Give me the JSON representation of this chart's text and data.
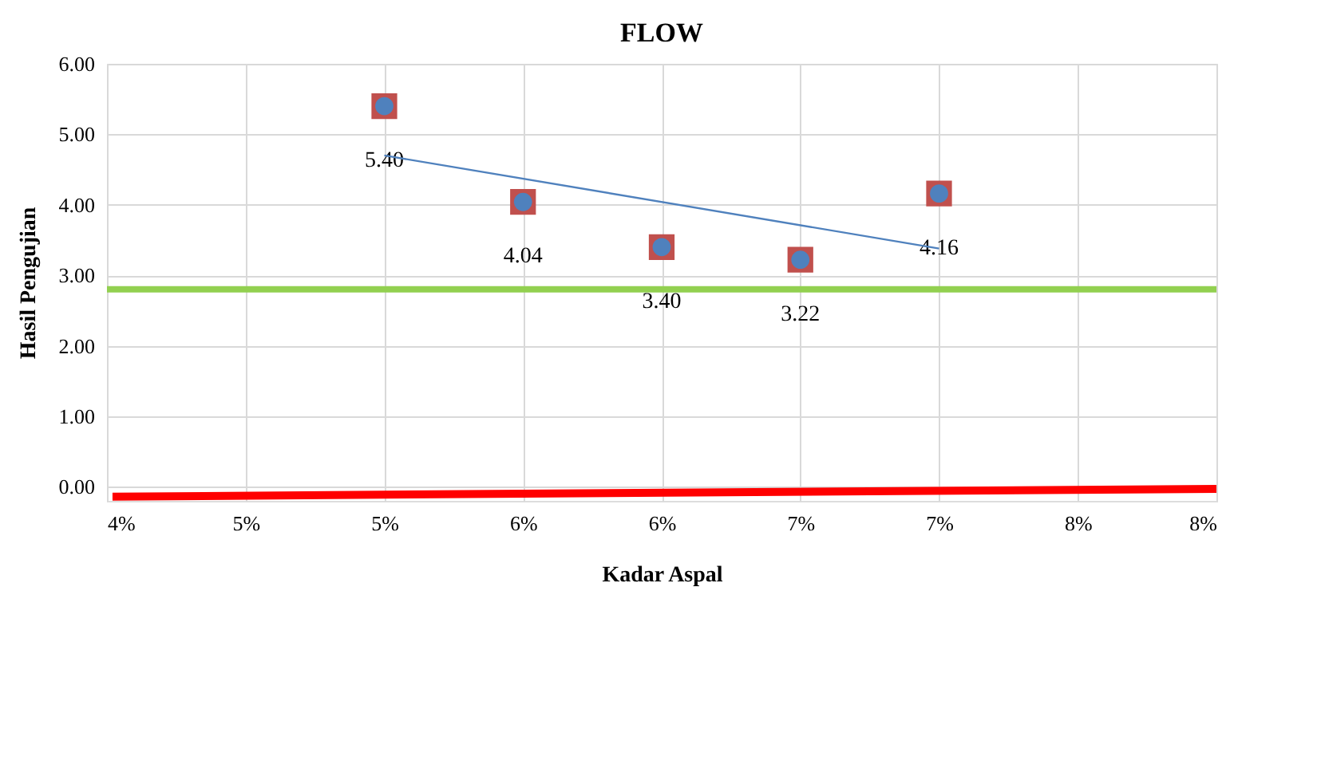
{
  "chart_data": {
    "type": "scatter",
    "title": "FLOW",
    "xlabel": "Kadar Aspal",
    "ylabel": "Hasil Pengujian",
    "xlim": [
      4,
      8
    ],
    "xticks": [
      {
        "value": 4,
        "label": "4%"
      },
      {
        "value": 4.5,
        "label": "5%"
      },
      {
        "value": 5,
        "label": "5%"
      },
      {
        "value": 5.5,
        "label": "6%"
      },
      {
        "value": 6,
        "label": "6%"
      },
      {
        "value": 6.5,
        "label": "7%"
      },
      {
        "value": 7,
        "label": "7%"
      },
      {
        "value": 7.5,
        "label": "8%"
      },
      {
        "value": 8,
        "label": "8%"
      }
    ],
    "ylim": [
      -0.2,
      6
    ],
    "yticks": [
      {
        "value": 0,
        "label": "0.00"
      },
      {
        "value": 1,
        "label": "1.00"
      },
      {
        "value": 2,
        "label": "2.00"
      },
      {
        "value": 3,
        "label": "3.00"
      },
      {
        "value": 4,
        "label": "4.00"
      },
      {
        "value": 5,
        "label": "5.00"
      },
      {
        "value": 6,
        "label": "6.00"
      }
    ],
    "grid": true,
    "series": [
      {
        "marker": "square",
        "color": "#c0504d",
        "x": [
          5,
          5.5,
          6,
          6.5,
          7
        ],
        "values": [
          5.4,
          4.04,
          3.4,
          3.22,
          4.16
        ],
        "value_labels": [
          "5.40",
          "4.04",
          "3.40",
          "3.22",
          "4.16"
        ]
      },
      {
        "marker": "circle",
        "color": "#4f81bd",
        "x": [
          5,
          5.5,
          6,
          6.5,
          7
        ],
        "values": [
          5.4,
          4.04,
          3.4,
          3.22,
          4.16
        ]
      },
      {
        "type": "line",
        "marker": "none",
        "color": "#4f81bd",
        "x": [
          5,
          7
        ],
        "values": [
          4.7,
          3.38
        ]
      },
      {
        "type": "line",
        "marker": "none",
        "color": "#ff0000",
        "x": [
          4.02,
          8
        ],
        "values": [
          -0.14,
          -0.03
        ]
      }
    ],
    "ref_lines": [
      {
        "axis": "y",
        "value": 2.8,
        "color": "#92d050"
      }
    ]
  }
}
